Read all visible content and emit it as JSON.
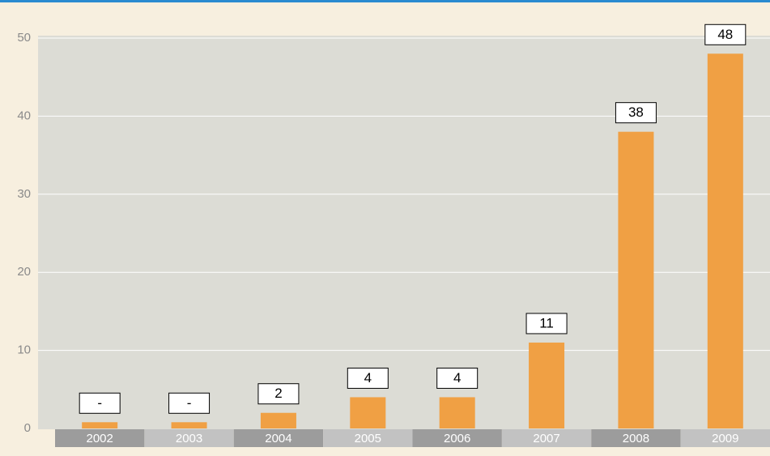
{
  "chart_data": {
    "type": "bar",
    "categories": [
      "2002",
      "2003",
      "2004",
      "2005",
      "2006",
      "2007",
      "2008",
      "2009"
    ],
    "values": [
      0.8,
      0.8,
      2,
      4,
      4,
      11,
      38,
      48
    ],
    "value_labels": [
      "-",
      "-",
      "2",
      "4",
      "4",
      "11",
      "38",
      "48"
    ],
    "color": "#f0a044",
    "ylim": [
      0,
      50
    ],
    "yticks": [
      0,
      10,
      20,
      30,
      40,
      50
    ],
    "grid": true
  }
}
